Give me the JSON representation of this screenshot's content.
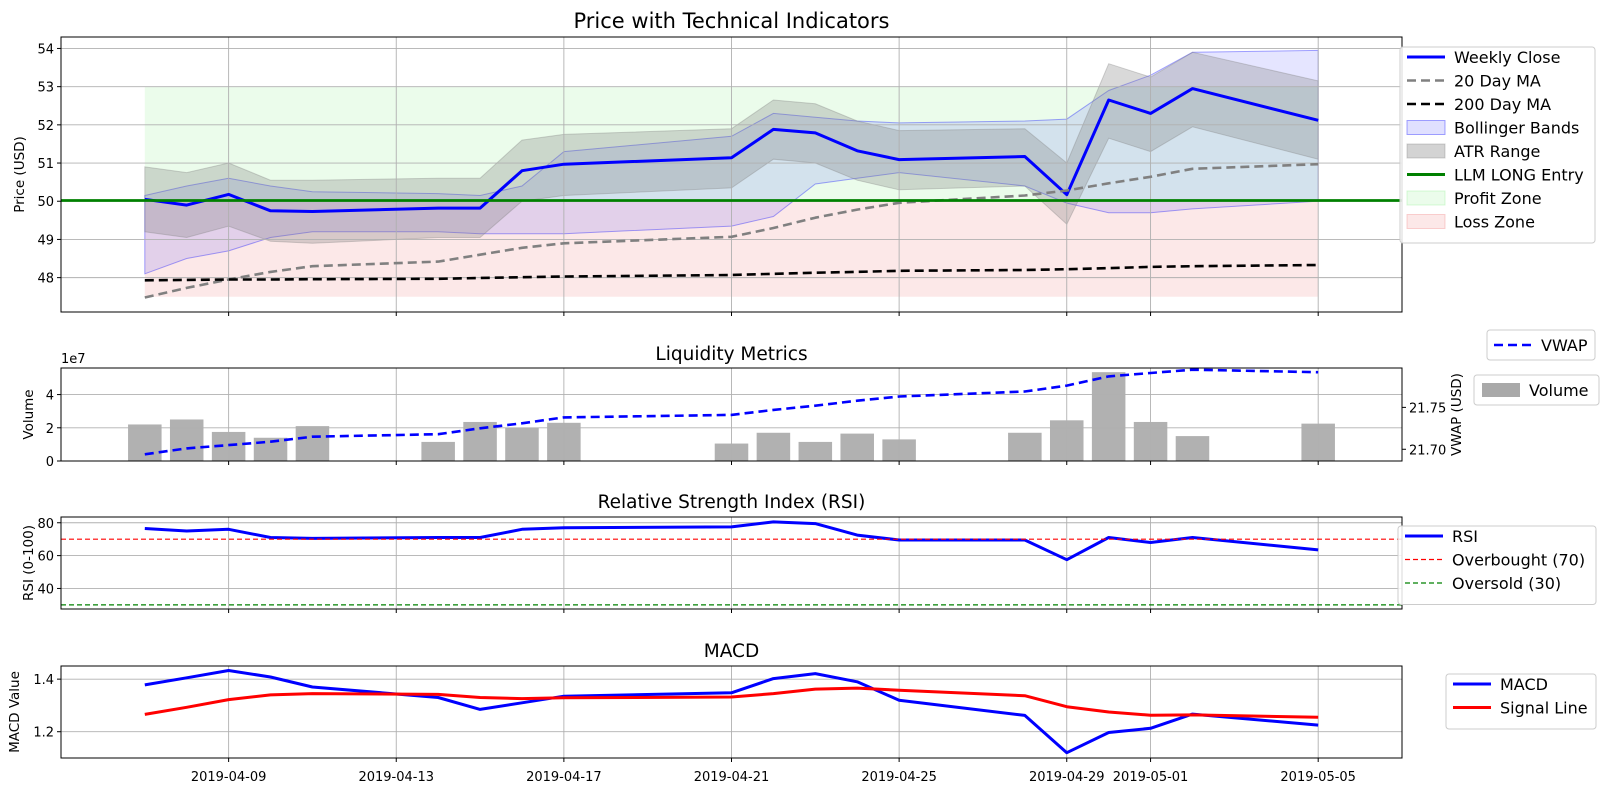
{
  "chart_data": [
    {
      "type": "line",
      "title": "Price with Technical Indicators",
      "ylabel": "Price (USD)",
      "xlim": [
        "2019-04-05",
        "2019-05-07"
      ],
      "ylim": [
        47.1,
        54.3
      ],
      "yticks": [
        48,
        49,
        50,
        51,
        52,
        53,
        54
      ],
      "grid": true,
      "legend_position": "right",
      "x": [
        "2019-04-07",
        "2019-04-08",
        "2019-04-09",
        "2019-04-10",
        "2019-04-11",
        "2019-04-14",
        "2019-04-15",
        "2019-04-16",
        "2019-04-17",
        "2019-04-21",
        "2019-04-22",
        "2019-04-23",
        "2019-04-24",
        "2019-04-25",
        "2019-04-28",
        "2019-04-29",
        "2019-04-30",
        "2019-05-01",
        "2019-05-02",
        "2019-05-05"
      ],
      "series": [
        {
          "name": "Weekly Close",
          "style": "line",
          "color": "#0000ff",
          "values": [
            50.05,
            49.9,
            50.18,
            49.75,
            49.73,
            49.82,
            49.82,
            50.8,
            50.97,
            51.14,
            51.88,
            51.79,
            51.32,
            51.09,
            51.17,
            50.17,
            52.65,
            52.3,
            52.95,
            52.12
          ]
        },
        {
          "name": "20 Day MA",
          "style": "dashed",
          "color": "#808080",
          "values": [
            47.48,
            47.73,
            47.95,
            48.15,
            48.3,
            48.42,
            48.6,
            48.78,
            48.9,
            49.07,
            49.3,
            49.57,
            49.78,
            49.96,
            50.15,
            50.28,
            50.47,
            50.64,
            50.85,
            50.97
          ]
        },
        {
          "name": "200 Day MA",
          "style": "dashed",
          "color": "#000000",
          "values": [
            47.93,
            47.94,
            47.95,
            47.95,
            47.96,
            47.97,
            47.99,
            48.01,
            48.03,
            48.07,
            48.1,
            48.13,
            48.15,
            48.18,
            48.2,
            48.22,
            48.25,
            48.28,
            48.3,
            48.33
          ]
        },
        {
          "name": "Bollinger Bands",
          "style": "band",
          "color": "#0000ff",
          "upper": [
            50.15,
            50.4,
            50.6,
            50.4,
            50.25,
            50.2,
            50.15,
            50.4,
            51.3,
            51.7,
            52.3,
            52.2,
            52.1,
            52.05,
            52.1,
            52.15,
            52.9,
            53.3,
            53.9,
            53.95
          ],
          "lower": [
            48.1,
            48.5,
            48.7,
            49.05,
            49.2,
            49.2,
            49.15,
            49.15,
            49.15,
            49.35,
            49.6,
            50.45,
            50.6,
            50.75,
            50.4,
            49.95,
            49.7,
            49.7,
            49.8,
            50.0
          ]
        },
        {
          "name": "ATR Range",
          "style": "band",
          "color": "#808080",
          "upper": [
            50.9,
            50.75,
            51.0,
            50.55,
            50.55,
            50.6,
            50.6,
            51.6,
            51.75,
            51.9,
            52.65,
            52.55,
            52.1,
            51.85,
            51.9,
            51.0,
            53.6,
            53.25,
            53.9,
            53.15
          ],
          "lower": [
            49.2,
            49.05,
            49.35,
            48.95,
            48.9,
            49.05,
            49.05,
            50.0,
            50.15,
            50.35,
            51.1,
            51.0,
            50.55,
            50.3,
            50.4,
            49.4,
            51.65,
            51.3,
            51.95,
            51.1
          ]
        },
        {
          "name": "LLM LONG Entry",
          "style": "hline",
          "color": "#008000",
          "value": 50.02
        },
        {
          "name": "Profit Zone",
          "style": "zone",
          "color": "#90ee90",
          "from": 50.02,
          "to": 53.0
        },
        {
          "name": "Loss Zone",
          "style": "zone",
          "color": "#f08080",
          "from": 47.5,
          "to": 50.02
        }
      ]
    },
    {
      "type": "bar",
      "title": "Liquidity Metrics",
      "ylabel": "Volume",
      "y2label": "VWAP (USD)",
      "offset_label": "1e7",
      "ylim": [
        0,
        5.6
      ],
      "yticks": [
        0,
        2,
        4
      ],
      "y2lim": [
        21.686,
        21.797
      ],
      "y2ticks": [
        21.7,
        21.75
      ],
      "grid": true,
      "legend_position": "right",
      "x": [
        "2019-04-07",
        "2019-04-08",
        "2019-04-09",
        "2019-04-10",
        "2019-04-11",
        "2019-04-14",
        "2019-04-15",
        "2019-04-16",
        "2019-04-17",
        "2019-04-21",
        "2019-04-22",
        "2019-04-23",
        "2019-04-24",
        "2019-04-25",
        "2019-04-28",
        "2019-04-29",
        "2019-04-30",
        "2019-05-01",
        "2019-05-02",
        "2019-05-05"
      ],
      "series": [
        {
          "name": "Volume",
          "style": "bar",
          "color": "#a9a9a9",
          "values": [
            2.2,
            2.5,
            1.75,
            1.4,
            2.1,
            1.15,
            2.35,
            2.0,
            2.3,
            1.05,
            1.7,
            1.15,
            1.65,
            1.3,
            1.7,
            2.45,
            5.35,
            2.35,
            1.5,
            2.25
          ]
        },
        {
          "name": "VWAP",
          "style": "dashed",
          "color": "#0000ff",
          "axis": "right",
          "values": [
            21.694,
            21.701,
            21.705,
            21.709,
            21.715,
            21.718,
            21.725,
            21.731,
            21.738,
            21.741,
            21.747,
            21.752,
            21.758,
            21.763,
            21.769,
            21.776,
            21.787,
            21.791,
            21.795,
            21.792
          ]
        }
      ]
    },
    {
      "type": "line",
      "title": "Relative Strength Index (RSI)",
      "ylabel": "RSI (0-100)",
      "ylim": [
        27.5,
        83.5
      ],
      "yticks": [
        40,
        60,
        80
      ],
      "grid": true,
      "legend_position": "right",
      "x": [
        "2019-04-07",
        "2019-04-08",
        "2019-04-09",
        "2019-04-10",
        "2019-04-11",
        "2019-04-14",
        "2019-04-15",
        "2019-04-16",
        "2019-04-17",
        "2019-04-21",
        "2019-04-22",
        "2019-04-23",
        "2019-04-24",
        "2019-04-25",
        "2019-04-28",
        "2019-04-29",
        "2019-04-30",
        "2019-05-01",
        "2019-05-02",
        "2019-05-05"
      ],
      "series": [
        {
          "name": "RSI",
          "style": "line",
          "color": "#0000ff",
          "values": [
            76.5,
            75,
            76,
            71,
            70.5,
            71,
            71,
            76,
            77,
            77.5,
            80.5,
            79.5,
            72.5,
            69.5,
            69.5,
            57.5,
            71,
            68,
            71,
            63.5
          ]
        },
        {
          "name": "Overbought (70)",
          "style": "hline-dashed",
          "color": "#ff0000",
          "value": 70
        },
        {
          "name": "Oversold (30)",
          "style": "hline-dashed",
          "color": "#008000",
          "value": 30
        }
      ]
    },
    {
      "type": "line",
      "title": "MACD",
      "ylabel": "MACD Value",
      "ylim": [
        1.1,
        1.45
      ],
      "yticks": [
        1.2,
        1.4
      ],
      "grid": true,
      "legend_position": "right",
      "xticks": [
        "2019-04-09",
        "2019-04-13",
        "2019-04-17",
        "2019-04-21",
        "2019-04-25",
        "2019-04-29",
        "2019-05-01",
        "2019-05-05"
      ],
      "x": [
        "2019-04-07",
        "2019-04-08",
        "2019-04-09",
        "2019-04-10",
        "2019-04-11",
        "2019-04-14",
        "2019-04-15",
        "2019-04-16",
        "2019-04-17",
        "2019-04-21",
        "2019-04-22",
        "2019-04-23",
        "2019-04-24",
        "2019-04-25",
        "2019-04-28",
        "2019-04-29",
        "2019-04-30",
        "2019-05-01",
        "2019-05-02",
        "2019-05-05"
      ],
      "series": [
        {
          "name": "MACD",
          "style": "line",
          "color": "#0000ff",
          "values": [
            1.378,
            1.405,
            1.433,
            1.408,
            1.37,
            1.33,
            1.285,
            1.31,
            1.335,
            1.348,
            1.402,
            1.421,
            1.39,
            1.32,
            1.262,
            1.12,
            1.197,
            1.213,
            1.267,
            1.225
          ]
        },
        {
          "name": "Signal Line",
          "style": "line",
          "color": "#ff0000",
          "values": [
            1.266,
            1.293,
            1.322,
            1.34,
            1.345,
            1.342,
            1.33,
            1.326,
            1.329,
            1.332,
            1.345,
            1.362,
            1.366,
            1.358,
            1.337,
            1.295,
            1.275,
            1.263,
            1.264,
            1.255
          ]
        }
      ]
    }
  ]
}
